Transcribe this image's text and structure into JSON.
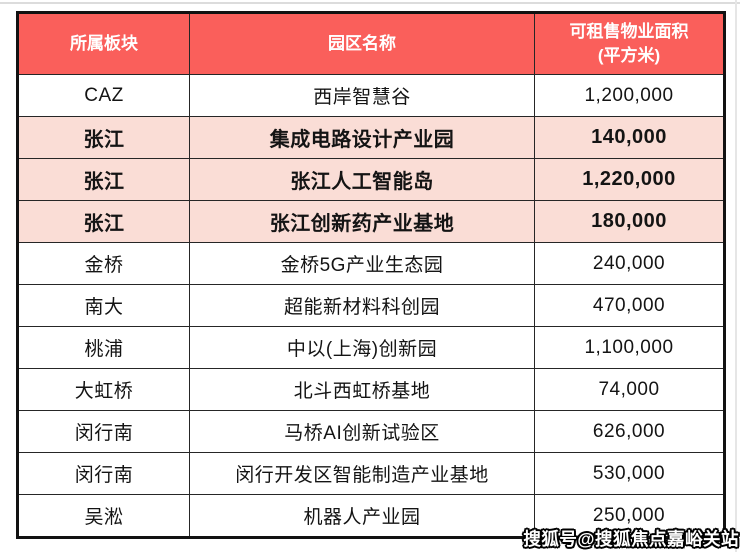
{
  "colors": {
    "header_bg": "#FA5F5B",
    "header_text": "#FFFFFF",
    "highlight_row_bg": "#FADDD6",
    "row_bg": "#FFFFFF",
    "grid_border": "#262626",
    "outer_border": "#121212"
  },
  "table": {
    "headers": {
      "sector": "所属板块",
      "park": "园区名称",
      "area_line1": "可租售物业面积",
      "area_line2": "(平方米)"
    },
    "rows": [
      {
        "sector": "CAZ",
        "park": "西岸智慧谷",
        "area": "1,200,000",
        "highlight": false
      },
      {
        "sector": "张江",
        "park": "集成电路设计产业园",
        "area": "140,000",
        "highlight": true
      },
      {
        "sector": "张江",
        "park": "张江人工智能岛",
        "area": "1,220,000",
        "highlight": true
      },
      {
        "sector": "张江",
        "park": "张江创新药产业基地",
        "area": "180,000",
        "highlight": true
      },
      {
        "sector": "金桥",
        "park": "金桥5G产业生态园",
        "area": "240,000",
        "highlight": false
      },
      {
        "sector": "南大",
        "park": "超能新材料科创园",
        "area": "470,000",
        "highlight": false
      },
      {
        "sector": "桃浦",
        "park": "中以(上海)创新园",
        "area": "1,100,000",
        "highlight": false
      },
      {
        "sector": "大虹桥",
        "park": "北斗西虹桥基地",
        "area": "74,000",
        "highlight": false
      },
      {
        "sector": "闵行南",
        "park": "马桥AI创新试验区",
        "area": "626,000",
        "highlight": false
      },
      {
        "sector": "闵行南",
        "park": "闵行开发区智能制造产业基地",
        "area": "530,000",
        "highlight": false
      },
      {
        "sector": "吴淞",
        "park": "机器人产业园",
        "area": "250,000",
        "highlight": false
      }
    ]
  },
  "watermark": {
    "text": "搜狐号@搜狐焦点嘉峪关站"
  },
  "chart_data": {
    "type": "table",
    "columns": [
      "所属板块",
      "园区名称",
      "可租售物业面积(平方米)"
    ],
    "rows": [
      [
        "CAZ",
        "西岸智慧谷",
        1200000
      ],
      [
        "张江",
        "集成电路设计产业园",
        140000
      ],
      [
        "张江",
        "张江人工智能岛",
        1220000
      ],
      [
        "张江",
        "张江创新药产业基地",
        180000
      ],
      [
        "金桥",
        "金桥5G产业生态园",
        240000
      ],
      [
        "南大",
        "超能新材料科创园",
        470000
      ],
      [
        "桃浦",
        "中以(上海)创新园",
        1100000
      ],
      [
        "大虹桥",
        "北斗西虹桥基地",
        74000
      ],
      [
        "闵行南",
        "马桥AI创新试验区",
        626000
      ],
      [
        "闵行南",
        "闵行开发区智能制造产业基地",
        530000
      ],
      [
        "吴淞",
        "机器人产业园",
        250000
      ]
    ],
    "highlighted_row_indices": [
      1,
      2,
      3
    ],
    "title": "",
    "legend": "off",
    "grid": "on"
  }
}
